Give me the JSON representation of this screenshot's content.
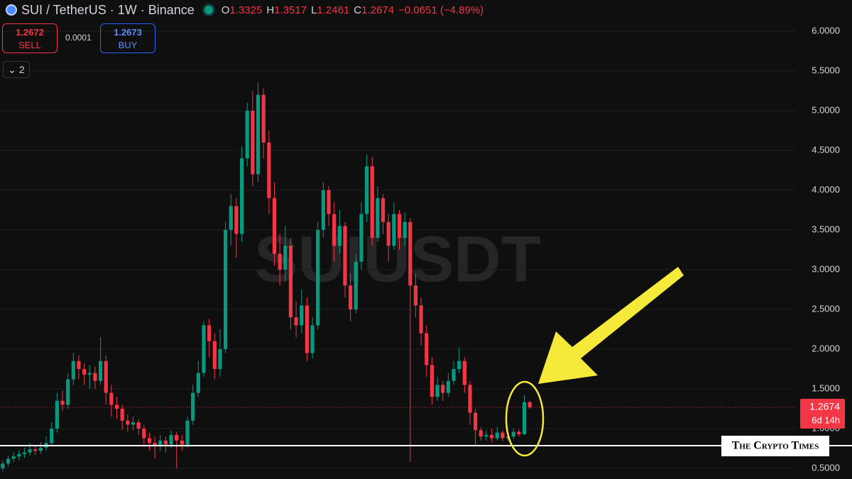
{
  "header": {
    "symbol": "SUI / TetherUS · 1W · Binance",
    "ohlc": [
      {
        "label": "O",
        "value": "1.3325"
      },
      {
        "label": "H",
        "value": "1.3517"
      },
      {
        "label": "L",
        "value": "1.2461"
      },
      {
        "label": "C",
        "value": "1.2674"
      }
    ],
    "change": "−0.0651 (−4.89%)"
  },
  "trade": {
    "sell_price": "1.2672",
    "sell_label": "SELL",
    "spread": "0.0001",
    "buy_price": "1.2673",
    "buy_label": "BUY"
  },
  "indicators_toggle": "2",
  "watermark": "SUIUSDT",
  "credit": "The Crypto Times",
  "chart_data": {
    "type": "candlestick",
    "up_color": "#089981",
    "down_color": "#f23645",
    "grid": true,
    "ylim": [
      0.366,
      6.393
    ],
    "yticks": [
      {
        "value": 0.5,
        "label": "0.5000"
      },
      {
        "value": 1,
        "label": "1.0000"
      },
      {
        "value": 1.5,
        "label": "1.5000"
      },
      {
        "value": 2,
        "label": "2.0000"
      },
      {
        "value": 2.5,
        "label": "2.5000"
      },
      {
        "value": 3,
        "label": "3.0000"
      },
      {
        "value": 3.5,
        "label": "3.5000"
      },
      {
        "value": 4,
        "label": "4.0000"
      },
      {
        "value": 4.5,
        "label": "4.5000"
      },
      {
        "value": 5,
        "label": "5.0000"
      },
      {
        "value": 5.5,
        "label": "5.5000"
      },
      {
        "value": 6,
        "label": "6.0000"
      }
    ],
    "last_price": 1.2674,
    "countdown": "6d 14h",
    "open": [
      0.5,
      0.56,
      0.62,
      0.65,
      0.68,
      0.7,
      0.74,
      0.72,
      0.76,
      0.82,
      1.0,
      1.35,
      1.3,
      1.62,
      1.85,
      1.75,
      1.68,
      1.7,
      1.6,
      1.85,
      1.45,
      1.3,
      1.25,
      1.1,
      1.05,
      1.08,
      1.0,
      0.88,
      0.82,
      0.78,
      0.85,
      0.8,
      0.92,
      0.85,
      0.8,
      1.1,
      1.45,
      1.7,
      2.3,
      2.1,
      1.75,
      2.0,
      3.5,
      3.8,
      3.45,
      4.4,
      5.0,
      4.2,
      5.2,
      4.6,
      3.9,
      3.2,
      3.0,
      3.3,
      2.4,
      2.3,
      2.55,
      1.95,
      2.3,
      3.5,
      4.0,
      3.7,
      3.3,
      3.55,
      2.8,
      2.5,
      3.1,
      3.7,
      4.3,
      3.4,
      3.9,
      3.6,
      3.3,
      3.7,
      3.4,
      3.6,
      2.8,
      2.55,
      2.2,
      1.8,
      1.4,
      1.55,
      1.45,
      1.6,
      1.75,
      1.85,
      1.55,
      1.2,
      0.98,
      0.9,
      0.92,
      0.88,
      0.95,
      0.88,
      0.9,
      0.96,
      0.93,
      1.3325
    ],
    "high": [
      0.6,
      0.66,
      0.7,
      0.73,
      0.76,
      0.82,
      0.79,
      0.83,
      0.9,
      1.08,
      1.45,
      1.48,
      1.7,
      1.95,
      1.92,
      1.82,
      1.8,
      1.78,
      2.15,
      1.92,
      1.55,
      1.4,
      1.3,
      1.18,
      1.15,
      1.12,
      1.04,
      0.95,
      0.9,
      0.92,
      0.9,
      0.98,
      0.96,
      0.92,
      1.15,
      1.55,
      1.85,
      2.35,
      2.38,
      2.2,
      2.25,
      3.6,
      3.95,
      3.9,
      4.55,
      5.1,
      5.25,
      5.35,
      5.28,
      4.75,
      4.1,
      3.45,
      3.55,
      3.4,
      2.6,
      2.75,
      2.65,
      2.4,
      3.6,
      4.1,
      4.05,
      3.85,
      3.75,
      3.6,
      2.95,
      3.2,
      3.85,
      4.45,
      4.42,
      4.05,
      3.95,
      3.7,
      3.85,
      3.75,
      3.72,
      3.65,
      2.95,
      2.65,
      2.3,
      1.9,
      1.65,
      1.6,
      1.7,
      1.85,
      2.02,
      1.9,
      1.6,
      1.25,
      1.02,
      0.98,
      1.0,
      1.02,
      0.98,
      0.95,
      1.0,
      0.99,
      1.42,
      1.3517
    ],
    "low": [
      0.46,
      0.52,
      0.58,
      0.6,
      0.63,
      0.66,
      0.67,
      0.68,
      0.72,
      0.78,
      0.95,
      1.22,
      1.25,
      1.55,
      1.62,
      1.55,
      1.5,
      1.5,
      1.55,
      1.3,
      1.15,
      1.12,
      0.98,
      0.96,
      0.98,
      0.92,
      0.8,
      0.72,
      0.62,
      0.72,
      0.7,
      0.75,
      0.5,
      0.72,
      0.76,
      1.05,
      1.4,
      1.65,
      1.9,
      1.62,
      1.65,
      1.95,
      3.3,
      3.15,
      3.35,
      4.3,
      4.05,
      4.1,
      4.4,
      3.7,
      3.05,
      2.8,
      2.85,
      2.25,
      2.15,
      2.2,
      1.85,
      1.88,
      2.25,
      3.4,
      3.55,
      3.1,
      3.2,
      2.65,
      2.35,
      2.45,
      3.0,
      3.6,
      3.3,
      3.35,
      3.45,
      3.1,
      3.25,
      3.25,
      3.3,
      0.58,
      2.4,
      2.05,
      1.65,
      1.3,
      1.35,
      1.35,
      1.4,
      1.55,
      1.7,
      1.45,
      1.05,
      0.8,
      0.85,
      0.85,
      0.83,
      0.85,
      0.84,
      0.84,
      0.87,
      0.9,
      0.92,
      1.2461
    ],
    "close": [
      0.56,
      0.62,
      0.65,
      0.68,
      0.7,
      0.74,
      0.72,
      0.76,
      0.82,
      1.0,
      1.35,
      1.3,
      1.62,
      1.85,
      1.75,
      1.68,
      1.7,
      1.6,
      1.85,
      1.45,
      1.3,
      1.25,
      1.1,
      1.05,
      1.08,
      1.0,
      0.88,
      0.82,
      0.78,
      0.85,
      0.8,
      0.92,
      0.85,
      0.8,
      1.1,
      1.45,
      1.7,
      2.3,
      2.1,
      1.75,
      2.0,
      3.5,
      3.8,
      3.45,
      4.4,
      5.0,
      4.2,
      5.2,
      4.6,
      3.9,
      3.2,
      3.0,
      3.3,
      2.4,
      2.3,
      2.55,
      1.95,
      2.3,
      3.5,
      4.0,
      3.7,
      3.3,
      3.55,
      2.8,
      2.5,
      3.1,
      3.7,
      4.3,
      3.4,
      3.9,
      3.6,
      3.3,
      3.7,
      3.4,
      3.6,
      2.8,
      2.55,
      2.2,
      1.8,
      1.4,
      1.55,
      1.45,
      1.6,
      1.75,
      1.85,
      1.55,
      1.2,
      0.98,
      0.9,
      0.92,
      0.88,
      0.95,
      0.88,
      0.9,
      0.96,
      0.93,
      1.3325,
      1.2674
    ]
  }
}
